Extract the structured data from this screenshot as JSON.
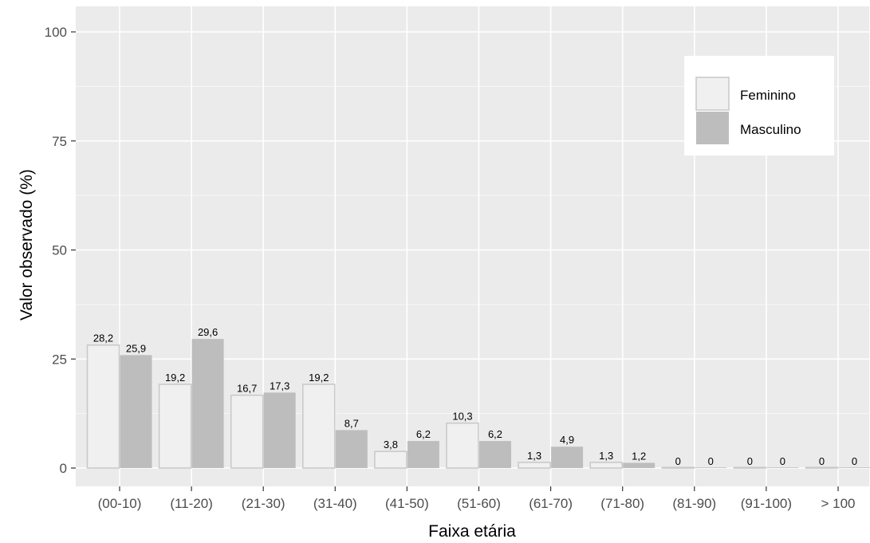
{
  "chart_data": {
    "type": "bar",
    "xlabel": "Faixa etária",
    "ylabel": "Valor observado (%)",
    "ylim": [
      0,
      100
    ],
    "yticks": [
      0,
      25,
      50,
      75,
      100
    ],
    "categories": [
      "(00-10)",
      "(11-20)",
      "(21-30)",
      "(31-40)",
      "(41-50)",
      "(51-60)",
      "(61-70)",
      "(71-80)",
      "(81-90)",
      "(91-100)",
      "> 100"
    ],
    "series": [
      {
        "name": "Feminino",
        "color": "#f0f0f0",
        "values": [
          28.2,
          19.2,
          16.7,
          19.2,
          3.8,
          10.3,
          1.3,
          1.3,
          0,
          0,
          0
        ],
        "labels": [
          "28,2",
          "19,2",
          "16,7",
          "19,2",
          "3,8",
          "10,3",
          "1,3",
          "1,3",
          "0",
          "0",
          "0"
        ]
      },
      {
        "name": "Masculino",
        "color": "#bdbdbd",
        "values": [
          25.9,
          29.6,
          17.3,
          8.7,
          6.2,
          6.2,
          4.9,
          1.2,
          0,
          0,
          0
        ],
        "labels": [
          "25,9",
          "29,6",
          "17,3",
          "8,7",
          "6,2",
          "6,2",
          "4,9",
          "1,2",
          "0",
          "0",
          "0"
        ]
      }
    ],
    "grid": true,
    "legend_position": "top-right",
    "panel_color": "#ebebeb"
  }
}
